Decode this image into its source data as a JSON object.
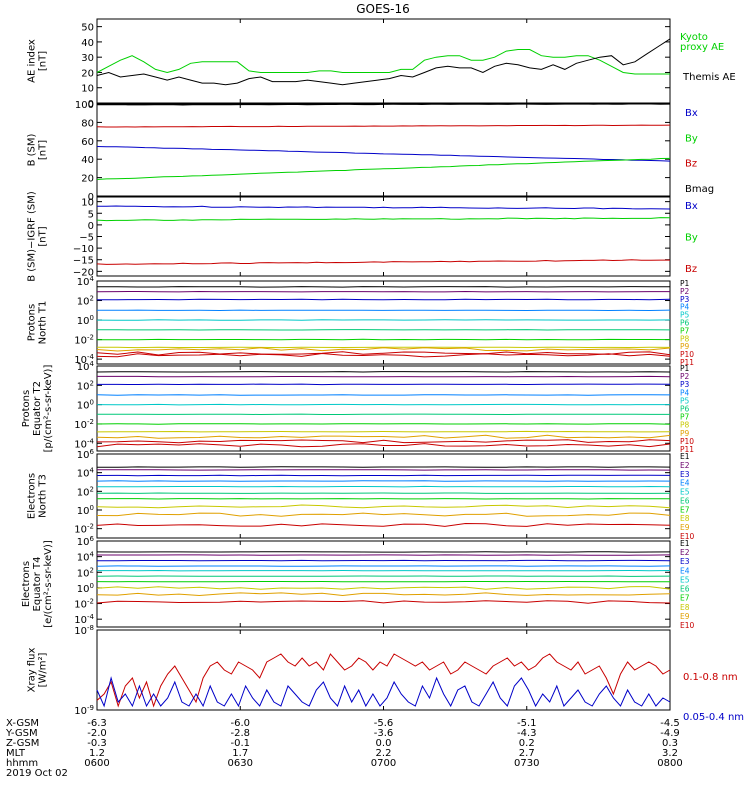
{
  "title": "GOES-16",
  "colors": {
    "black": "#000000",
    "blue": "#0000c8",
    "green": "#00d000",
    "red": "#c80000",
    "P": [
      "#000000",
      "#6a006a",
      "#0000c8",
      "#0080ff",
      "#00c8c8",
      "#00c878",
      "#00d000",
      "#c8c800",
      "#e0a000",
      "#c80000",
      "#c80000"
    ],
    "E": [
      "#000000",
      "#6a006a",
      "#0000c8",
      "#0080ff",
      "#00c8c8",
      "#00c878",
      "#00d000",
      "#c8c800",
      "#e0a000",
      "#c80000"
    ]
  },
  "chart_data": [
    {
      "type": "line",
      "id": "ae",
      "ylabel": [
        "AE index",
        "[nT]"
      ],
      "ylim": [
        0,
        55
      ],
      "yticks": [
        "0",
        "10",
        "20",
        "30",
        "40",
        "50"
      ],
      "series": [
        {
          "name": "Kyoto proxy AE",
          "color": "green",
          "values": [
            20,
            24,
            28,
            31,
            27,
            22,
            20,
            22,
            26,
            27,
            27,
            27,
            27,
            21,
            20,
            20,
            20,
            20,
            20,
            21,
            21,
            20,
            20,
            20,
            20,
            20,
            22,
            22,
            28,
            30,
            31,
            31,
            28,
            28,
            30,
            34,
            35,
            35,
            31,
            30,
            30,
            31,
            31,
            28,
            24,
            20,
            19,
            19,
            19,
            19
          ]
        },
        {
          "name": "Themis AE",
          "color": "black",
          "values": [
            18,
            20,
            17,
            18,
            19,
            17,
            15,
            17,
            15,
            13,
            13,
            12,
            13,
            16,
            17,
            14,
            14,
            14,
            15,
            14,
            13,
            12,
            13,
            14,
            15,
            16,
            18,
            17,
            20,
            23,
            24,
            23,
            23,
            20,
            24,
            26,
            25,
            23,
            22,
            25,
            22,
            26,
            28,
            30,
            31,
            25,
            27,
            32,
            37,
            42
          ]
        }
      ]
    },
    {
      "type": "line",
      "id": "bsm",
      "ylabel": [
        "B (SM)",
        "[nT]"
      ],
      "ylim": [
        0,
        100
      ],
      "yticks": [
        "0",
        "20",
        "40",
        "60",
        "80",
        "100"
      ],
      "series": [
        {
          "name": "Bx",
          "color": "blue",
          "values": [
            54,
            38
          ]
        },
        {
          "name": "By",
          "color": "green",
          "values": [
            18,
            41
          ]
        },
        {
          "name": "Bz",
          "color": "red",
          "values": [
            75,
            77
          ]
        },
        {
          "name": "Bmag",
          "color": "black",
          "values": [
            99,
            100
          ]
        }
      ]
    },
    {
      "type": "line",
      "id": "bigrf",
      "ylabel": [
        "B (SM)−IGRF (SM)",
        "[nT]"
      ],
      "ylim": [
        -22,
        12
      ],
      "yticks": [
        "−20",
        "−15",
        "−10",
        "−5",
        "0",
        "5",
        "10"
      ],
      "series": [
        {
          "name": "Bx",
          "color": "blue",
          "values": [
            8,
            7
          ]
        },
        {
          "name": "By",
          "color": "green",
          "values": [
            2,
            3
          ]
        },
        {
          "name": "Bz",
          "color": "red",
          "values": [
            -17,
            -15
          ]
        }
      ]
    },
    {
      "type": "line",
      "id": "protons_n",
      "scale": "log",
      "ylabel": [
        "Protons",
        "North T1"
      ],
      "ylim_exp": [
        -4.5,
        4
      ],
      "yticks": [
        "10^4",
        "10^2",
        "10^0",
        "10^-2",
        "10^-4"
      ],
      "channels": [
        "P1",
        "P2",
        "P3",
        "P4",
        "P5",
        "P6",
        "P7",
        "P8",
        "P9",
        "P10",
        "P11"
      ],
      "levels_exp": [
        3.4,
        2.9,
        2.1,
        1.0,
        0.0,
        -1.0,
        -2.0,
        -2.8,
        -3.0,
        -3.4,
        -3.6
      ]
    },
    {
      "type": "line",
      "id": "protons_e",
      "scale": "log",
      "ylabel": [
        "Protons",
        "Equator T2",
        "[p/(cm²-s-sr-keV)]"
      ],
      "ylim_exp": [
        -4.8,
        4
      ],
      "yticks": [
        "10^4",
        "10^2",
        "10^0",
        "10^-2",
        "10^-4"
      ],
      "channels": [
        "P1",
        "P2",
        "P3",
        "P4",
        "P5",
        "P6",
        "P7",
        "P8",
        "P9",
        "P10",
        "P11"
      ],
      "levels_exp": [
        3.4,
        2.9,
        2.1,
        1.0,
        0.0,
        -1.0,
        -2.0,
        -2.8,
        -3.3,
        -3.8,
        -4.2
      ]
    },
    {
      "type": "line",
      "id": "electrons_n",
      "scale": "log",
      "ylabel": [
        "Electrons",
        "North T3"
      ],
      "ylim_exp": [
        -3,
        6
      ],
      "yticks": [
        "10^6",
        "10^4",
        "10^2",
        "10^0",
        "10^-2"
      ],
      "channels": [
        "E1",
        "E2",
        "E3",
        "E4",
        "E5",
        "E6",
        "E7",
        "E8",
        "E9",
        "E10"
      ],
      "levels_exp": [
        4.6,
        4.3,
        3.7,
        3.1,
        2.5,
        1.8,
        1.2,
        0.4,
        -0.5,
        -1.6
      ]
    },
    {
      "type": "line",
      "id": "electrons_e",
      "scale": "log",
      "ylabel": [
        "Electrons",
        "Equator T4",
        "[e/(cm²-s-sr-keV)]"
      ],
      "ylim_exp": [
        -5,
        6
      ],
      "yticks": [
        "10^6",
        "10^4",
        "10^2",
        "10^0",
        "10^-2",
        "10^-4"
      ],
      "channels": [
        "E1",
        "E2",
        "E3",
        "E4",
        "E5",
        "E6",
        "E7",
        "E8",
        "E9",
        "E10"
      ],
      "levels_exp": [
        4.6,
        4.2,
        3.5,
        2.8,
        2.2,
        1.5,
        0.8,
        0.0,
        -0.8,
        -1.8
      ]
    },
    {
      "type": "line",
      "id": "xray",
      "scale": "log",
      "ylabel": [
        "Xray flux",
        "[W/m²]"
      ],
      "ylim_exp": [
        -9,
        -8
      ],
      "yticks": [
        "10^-8",
        "10^-9"
      ],
      "series": [
        {
          "name": "0.1−0.8 nm",
          "color": "red",
          "values": [
            0.12,
            0.2,
            0.35,
            0.05,
            0.3,
            0.4,
            0.15,
            0.35,
            0.05,
            0.3,
            0.45,
            0.55,
            0.4,
            0.25,
            0.1,
            0.4,
            0.55,
            0.6,
            0.5,
            0.45,
            0.6,
            0.55,
            0.5,
            0.4,
            0.6,
            0.65,
            0.7,
            0.6,
            0.55,
            0.65,
            0.55,
            0.6,
            0.5,
            0.7,
            0.6,
            0.5,
            0.55,
            0.65,
            0.6,
            0.5,
            0.6,
            0.55,
            0.7,
            0.65,
            0.6,
            0.55,
            0.6,
            0.5,
            0.55,
            0.6,
            0.45,
            0.5,
            0.6,
            0.55,
            0.5,
            0.45,
            0.55,
            0.6,
            0.65,
            0.55,
            0.6,
            0.5,
            0.55,
            0.65,
            0.7,
            0.6,
            0.55,
            0.5,
            0.6,
            0.45,
            0.5,
            0.55,
            0.4,
            0.2,
            0.45,
            0.6,
            0.5,
            0.55,
            0.6,
            0.55,
            0.45,
            0.5
          ]
        },
        {
          "name": "0.05−0.4 nm",
          "color": "blue",
          "values": [
            0.25,
            0.05,
            0.4,
            0.1,
            0.2,
            0.05,
            0.3,
            0.05,
            0.2,
            0.05,
            0.15,
            0.35,
            0.1,
            0.05,
            0.2,
            0.05,
            0.3,
            0.1,
            0.05,
            0.2,
            0.05,
            0.3,
            0.15,
            0.05,
            0.25,
            0.1,
            0.05,
            0.3,
            0.2,
            0.1,
            0.05,
            0.25,
            0.35,
            0.15,
            0.05,
            0.3,
            0.1,
            0.25,
            0.05,
            0.2,
            0.05,
            0.15,
            0.35,
            0.2,
            0.1,
            0.05,
            0.3,
            0.15,
            0.4,
            0.2,
            0.05,
            0.25,
            0.3,
            0.1,
            0.05,
            0.2,
            0.35,
            0.15,
            0.05,
            0.3,
            0.4,
            0.25,
            0.05,
            0.2,
            0.1,
            0.3,
            0.05,
            0.15,
            0.25,
            0.1,
            0.05,
            0.2,
            0.3,
            0.15,
            0.05,
            0.25,
            0.1,
            0.05,
            0.2,
            0.05,
            0.15,
            0.1
          ]
        }
      ]
    }
  ],
  "xaxis": {
    "rows": [
      {
        "label": "X-GSM",
        "values": [
          "-6.3",
          "-6.0",
          "-5.6",
          "-5.1",
          "-4.5"
        ]
      },
      {
        "label": "Y-GSM",
        "values": [
          "-2.0",
          "-2.8",
          "-3.6",
          "-4.3",
          "-4.9"
        ]
      },
      {
        "label": "Z-GSM",
        "values": [
          "-0.3",
          "-0.1",
          "0.0",
          "0.2",
          "0.3"
        ]
      },
      {
        "label": "MLT",
        "values": [
          "1.2",
          "1.7",
          "2.2",
          "2.7",
          "3.2"
        ]
      },
      {
        "label": "hhmm",
        "values": [
          "0600",
          "0630",
          "0700",
          "0730",
          "0800"
        ]
      }
    ],
    "date": "2019 Oct 02"
  }
}
